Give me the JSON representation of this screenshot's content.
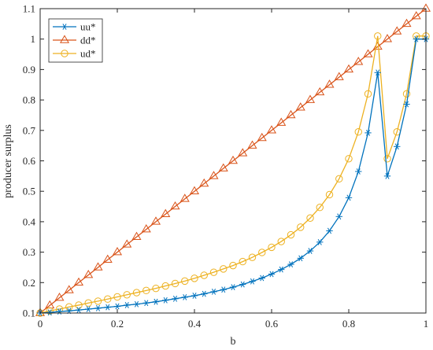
{
  "chart_data": {
    "type": "line",
    "xlabel": "b",
    "ylabel": "producer surplus",
    "xlim": [
      0,
      1
    ],
    "ylim": [
      0.1,
      1.1
    ],
    "xticks": [
      0,
      0.2,
      0.4,
      0.6,
      0.8,
      1
    ],
    "yticks": [
      0.1,
      0.2,
      0.3,
      0.4,
      0.5,
      0.6,
      0.7,
      0.8,
      0.9,
      1,
      1.1
    ],
    "xtick_labels": [
      "0",
      "0.2",
      "0.4",
      "0.6",
      "0.8",
      "1"
    ],
    "ytick_labels": [
      "0.1",
      "0.2",
      "0.3",
      "0.4",
      "0.5",
      "0.6",
      "0.7",
      "0.8",
      "0.9",
      "1",
      "1.1"
    ],
    "grid": false,
    "legend_position": "top-left",
    "x": [
      0,
      0.025,
      0.05,
      0.075,
      0.1,
      0.125,
      0.15,
      0.175,
      0.2,
      0.225,
      0.25,
      0.275,
      0.3,
      0.325,
      0.35,
      0.375,
      0.4,
      0.425,
      0.45,
      0.475,
      0.5,
      0.525,
      0.55,
      0.575,
      0.6,
      0.625,
      0.65,
      0.675,
      0.7,
      0.725,
      0.75,
      0.775,
      0.8,
      0.825,
      0.85,
      0.875,
      0.9,
      0.925,
      0.95,
      0.975,
      1
    ],
    "series": [
      {
        "name": "uu*",
        "color": "#0072BD",
        "marker": "asterisk",
        "values": [
          0.1,
          0.102,
          0.105,
          0.107,
          0.11,
          0.113,
          0.116,
          0.119,
          0.122,
          0.126,
          0.129,
          0.133,
          0.137,
          0.142,
          0.147,
          0.152,
          0.157,
          0.163,
          0.17,
          0.177,
          0.185,
          0.194,
          0.204,
          0.215,
          0.228,
          0.243,
          0.26,
          0.28,
          0.304,
          0.333,
          0.37,
          0.417,
          0.479,
          0.565,
          0.692,
          0.89,
          0.55,
          0.647,
          0.786,
          1.0,
          1.0
        ]
      },
      {
        "name": "dd*",
        "color": "#D95319",
        "marker": "triangle",
        "values": [
          0.1,
          0.125,
          0.15,
          0.175,
          0.2,
          0.225,
          0.25,
          0.275,
          0.3,
          0.325,
          0.35,
          0.375,
          0.4,
          0.425,
          0.45,
          0.475,
          0.5,
          0.525,
          0.55,
          0.575,
          0.6,
          0.625,
          0.65,
          0.675,
          0.7,
          0.725,
          0.75,
          0.775,
          0.8,
          0.825,
          0.85,
          0.875,
          0.9,
          0.925,
          0.95,
          0.975,
          1.0,
          1.025,
          1.05,
          1.075,
          1.1
        ]
      },
      {
        "name": "ud*",
        "color": "#EDB120",
        "marker": "circle",
        "values": [
          0.1,
          0.107,
          0.113,
          0.12,
          0.126,
          0.133,
          0.139,
          0.146,
          0.153,
          0.16,
          0.167,
          0.174,
          0.181,
          0.189,
          0.197,
          0.205,
          0.214,
          0.224,
          0.234,
          0.245,
          0.256,
          0.269,
          0.283,
          0.299,
          0.316,
          0.335,
          0.357,
          0.382,
          0.412,
          0.447,
          0.489,
          0.541,
          0.607,
          0.695,
          0.82,
          1.01,
          0.607,
          0.695,
          0.82,
          1.01,
          1.01
        ]
      }
    ]
  }
}
